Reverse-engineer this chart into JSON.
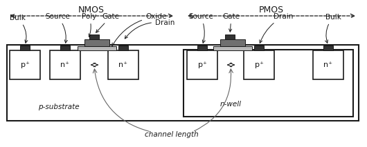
{
  "bg_color": "#ffffff",
  "lc": "#1a1a1a",
  "gray_contact": "#333333",
  "oxide_gray": "#b8b8b8",
  "poly_gray": "#707070",
  "nmos_label": "NMOS",
  "pmos_label": "PMOS",
  "channel_length_label": "channel length",
  "p_substrate_label": "p-substrate",
  "n_well_label": "n-well"
}
